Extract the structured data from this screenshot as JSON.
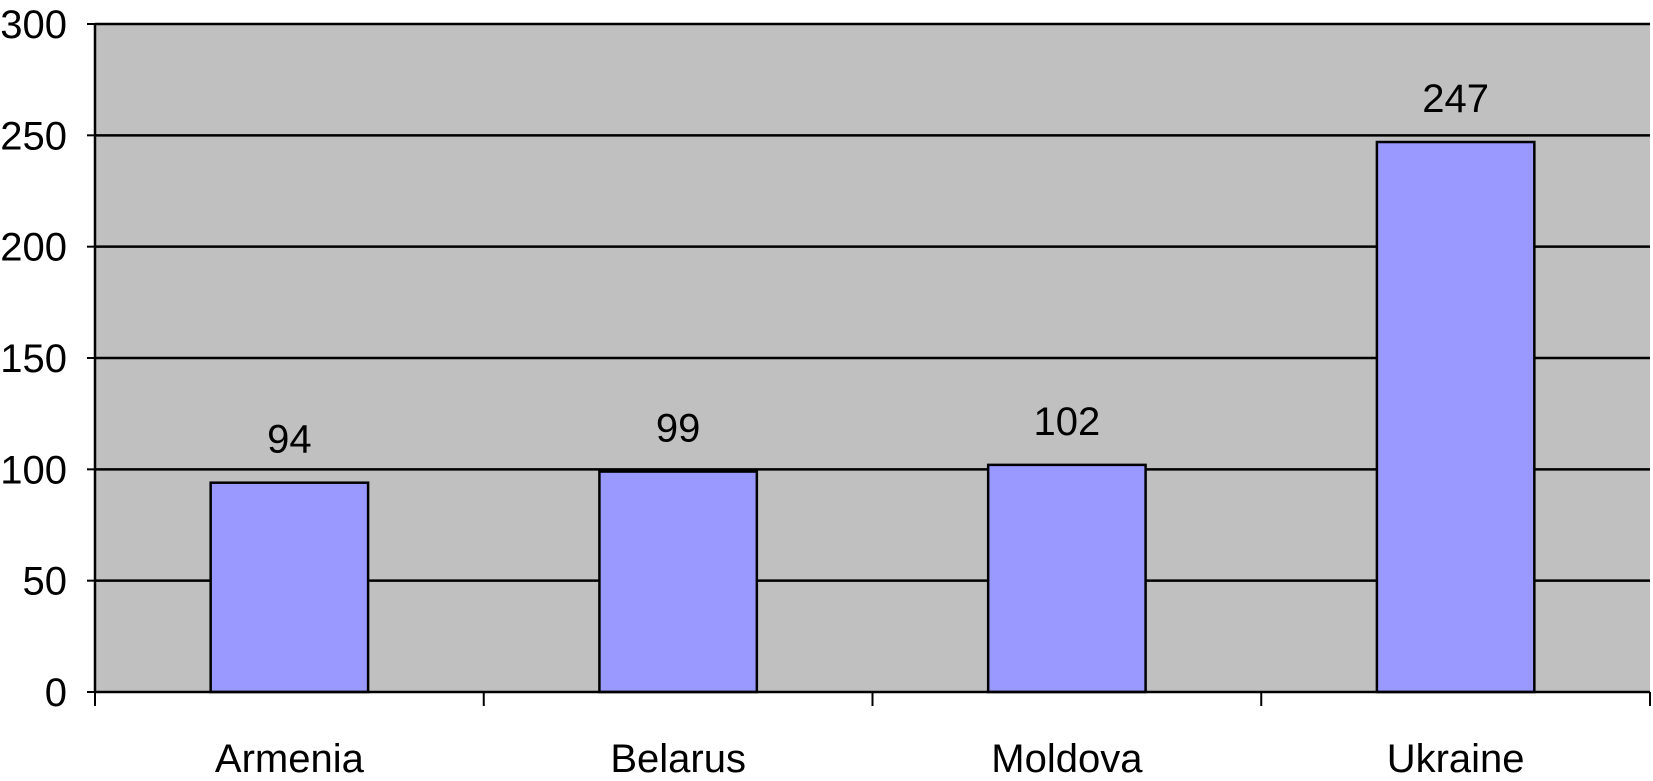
{
  "chart_data": {
    "type": "bar",
    "categories": [
      "Armenia",
      "Belarus",
      "Moldova",
      "Ukraine"
    ],
    "values": [
      94,
      99,
      102,
      247
    ],
    "data_labels": [
      "94",
      "99",
      "102",
      "247"
    ],
    "y_ticks": [
      "0",
      "50",
      "100",
      "150",
      "200",
      "250",
      "300"
    ],
    "ylim": [
      0,
      300
    ],
    "grid": true,
    "legend": "none",
    "colors": {
      "plot_background": "#c0c0c0",
      "bar_fill": "#9999ff",
      "bar_stroke": "#000000",
      "gridline": "#000000"
    }
  }
}
